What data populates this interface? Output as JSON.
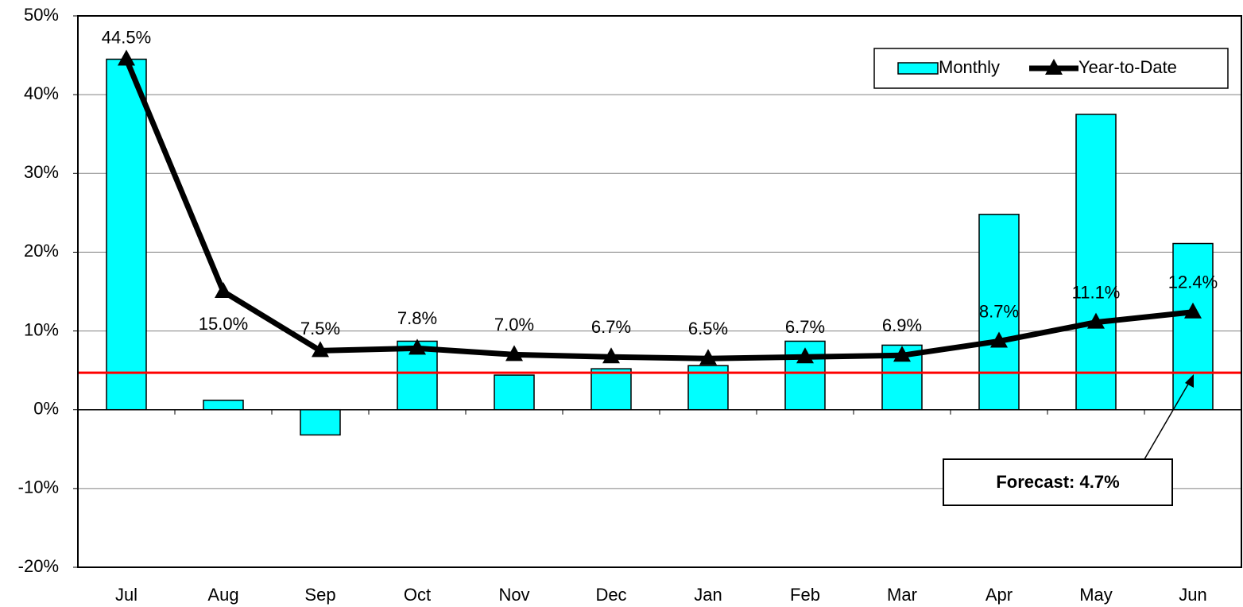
{
  "chart_data": {
    "type": "bar",
    "categories": [
      "Jul",
      "Aug",
      "Sep",
      "Oct",
      "Nov",
      "Dec",
      "Jan",
      "Feb",
      "Mar",
      "Apr",
      "May",
      "Jun"
    ],
    "series": [
      {
        "name": "Monthly",
        "type": "bar",
        "color": "#00ffff",
        "values": [
          44.5,
          1.2,
          -3.2,
          8.7,
          4.4,
          5.2,
          5.6,
          8.7,
          8.2,
          24.8,
          37.5,
          21.1
        ]
      },
      {
        "name": "Year-to-Date",
        "type": "line",
        "color": "#000000",
        "values": [
          44.5,
          15.0,
          7.5,
          7.8,
          7.0,
          6.7,
          6.5,
          6.7,
          6.9,
          8.7,
          11.1,
          12.4
        ],
        "value_labels": [
          "44.5%",
          "15.0%",
          "7.5%",
          "7.8%",
          "7.0%",
          "6.7%",
          "6.5%",
          "6.7%",
          "6.9%",
          "8.7%",
          "11.1%",
          "12.4%"
        ]
      }
    ],
    "forecast": {
      "value": 4.7,
      "label": "Forecast: 4.7%",
      "color": "#ff0000"
    },
    "ylim": [
      -20,
      50
    ],
    "yticks": [
      {
        "value": -20,
        "label": "-20%"
      },
      {
        "value": -10,
        "label": "-10%"
      },
      {
        "value": 0,
        "label": "0%"
      },
      {
        "value": 10,
        "label": "10%"
      },
      {
        "value": 20,
        "label": "20%"
      },
      {
        "value": 30,
        "label": "30%"
      },
      {
        "value": 40,
        "label": "40%"
      },
      {
        "value": 50,
        "label": "50%"
      }
    ],
    "grid": true,
    "legend": "top-right"
  }
}
